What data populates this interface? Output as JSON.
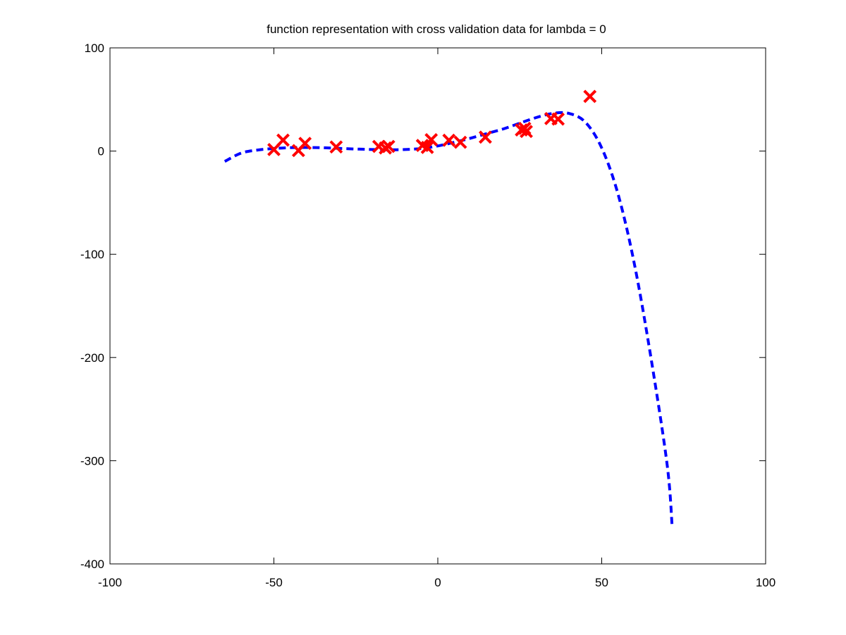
{
  "chart_data": {
    "type": "scatter",
    "title": "function representation with cross validation data for lambda = 0",
    "xlabel": "",
    "ylabel": "",
    "xlim": [
      -100,
      100
    ],
    "ylim": [
      -400,
      100
    ],
    "xticks": [
      -100,
      -50,
      0,
      50,
      100
    ],
    "yticks": [
      100,
      0,
      -100,
      -200,
      -300,
      -400
    ],
    "grid": false,
    "legend": "none",
    "series": [
      {
        "kind": "points",
        "marker": "x",
        "color": "#ff0000",
        "x": [
          -50.0,
          -47.2,
          -42.5,
          -40.5,
          -31.0,
          -18.0,
          -16.0,
          -15.0,
          -4.7,
          -3.2,
          -2.0,
          3.4,
          6.9,
          14.5,
          25.5,
          26.5,
          27.0,
          34.5,
          36.7,
          46.4
        ],
        "y": [
          1.5,
          10.6,
          0.5,
          7.5,
          4.0,
          4.5,
          3.0,
          4.5,
          5.5,
          3.5,
          11.0,
          10.5,
          8.5,
          13.5,
          20.5,
          22.0,
          19.0,
          31.5,
          31.0,
          53.0
        ]
      },
      {
        "kind": "curve",
        "line_style": "dashed",
        "color": "#0000ff",
        "x": [
          -65,
          -60,
          -55,
          -50,
          -45,
          -40,
          -35,
          -30,
          -25,
          -20,
          -15,
          -10,
          -5,
          0,
          5,
          10,
          15,
          20,
          25,
          30,
          35,
          40,
          45,
          50,
          55,
          60,
          65,
          70,
          71.5
        ],
        "y": [
          -10,
          -2,
          1,
          2.5,
          3.3,
          3.5,
          3.2,
          2.6,
          2,
          1.5,
          1.2,
          1.5,
          2.5,
          5,
          8.5,
          12.5,
          17,
          21.5,
          27,
          32.5,
          36.5,
          36.5,
          28,
          3,
          -42,
          -110,
          -200,
          -305,
          -365
        ]
      }
    ]
  }
}
